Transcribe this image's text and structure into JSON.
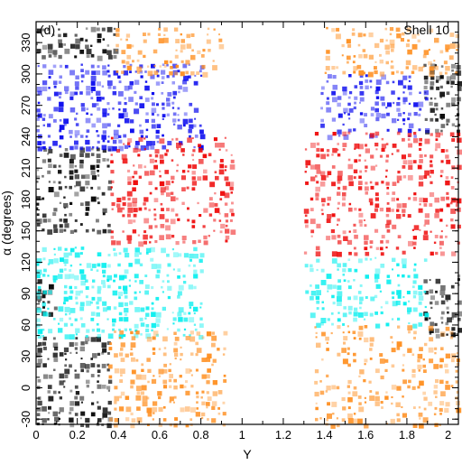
{
  "chart_data": {
    "type": "scatter",
    "panel_label": "(d)",
    "annotation": "Shell 10",
    "xlabel": "Y",
    "ylabel": "α (degrees)",
    "xlim": [
      0,
      2.05
    ],
    "ylim": [
      -35,
      350
    ],
    "x_ticks": [
      {
        "value": 0,
        "label": "0"
      },
      {
        "value": 0.2,
        "label": "0.2"
      },
      {
        "value": 0.4,
        "label": "0.4"
      },
      {
        "value": 0.6,
        "label": "0.6"
      },
      {
        "value": 0.8,
        "label": "0.8"
      },
      {
        "value": 1,
        "label": "1"
      },
      {
        "value": 1.2,
        "label": "1.2"
      },
      {
        "value": 1.4,
        "label": "1.4"
      },
      {
        "value": 1.6,
        "label": "1.6"
      },
      {
        "value": 1.8,
        "label": "1.8"
      },
      {
        "value": 2,
        "label": "2"
      }
    ],
    "y_ticks": [
      {
        "value": -30,
        "label": "-30"
      },
      {
        "value": 0,
        "label": "0"
      },
      {
        "value": 30,
        "label": "30"
      },
      {
        "value": 60,
        "label": "60"
      },
      {
        "value": 90,
        "label": "90"
      },
      {
        "value": 120,
        "label": "120"
      },
      {
        "value": 150,
        "label": "150"
      },
      {
        "value": 180,
        "label": "180"
      },
      {
        "value": 210,
        "label": "210"
      },
      {
        "value": 240,
        "label": "240"
      },
      {
        "value": 270,
        "label": "270"
      },
      {
        "value": 300,
        "label": "300"
      },
      {
        "value": 330,
        "label": "330"
      }
    ],
    "colors": {
      "black": "#000000",
      "blue": "#0000ee",
      "red": "#ee0000",
      "cyan": "#00eeee",
      "orange": "#ff8c1a"
    },
    "regions": [
      {
        "color": "black",
        "x": [
          0.0,
          0.36
        ],
        "y": [
          -35,
          50
        ],
        "density": 0.55
      },
      {
        "color": "black",
        "x": [
          0.0,
          0.36
        ],
        "y": [
          150,
          230
        ],
        "density": 0.55
      },
      {
        "color": "black",
        "x": [
          0.0,
          0.38
        ],
        "y": [
          318,
          345
        ],
        "density": 0.5
      },
      {
        "color": "black",
        "x": [
          1.88,
          2.05
        ],
        "y": [
          245,
          310
        ],
        "density": 0.7
      },
      {
        "color": "black",
        "x": [
          1.88,
          2.05
        ],
        "y": [
          50,
          110
        ],
        "density": 0.6
      },
      {
        "color": "black",
        "x": [
          0.0,
          0.1
        ],
        "y": [
          70,
          105
        ],
        "density": 0.5
      },
      {
        "color": "blue",
        "x": [
          0.0,
          0.8
        ],
        "y": [
          230,
          310
        ],
        "density": 0.55
      },
      {
        "color": "blue",
        "x": [
          1.38,
          1.88
        ],
        "y": [
          238,
          300
        ],
        "density": 0.45
      },
      {
        "color": "red",
        "x": [
          0.36,
          0.95
        ],
        "y": [
          140,
          240
        ],
        "density": 0.45
      },
      {
        "color": "red",
        "x": [
          1.3,
          2.05
        ],
        "y": [
          130,
          245
        ],
        "density": 0.45
      },
      {
        "color": "cyan",
        "x": [
          0.0,
          0.8
        ],
        "y": [
          50,
          135
        ],
        "density": 0.55
      },
      {
        "color": "cyan",
        "x": [
          1.3,
          1.88
        ],
        "y": [
          60,
          125
        ],
        "density": 0.45
      },
      {
        "color": "orange",
        "x": [
          0.35,
          0.92
        ],
        "y": [
          -35,
          55
        ],
        "density": 0.45
      },
      {
        "color": "orange",
        "x": [
          0.38,
          0.9
        ],
        "y": [
          300,
          345
        ],
        "density": 0.45
      },
      {
        "color": "orange",
        "x": [
          1.35,
          2.05
        ],
        "y": [
          -35,
          60
        ],
        "density": 0.4
      },
      {
        "color": "orange",
        "x": [
          1.4,
          2.05
        ],
        "y": [
          300,
          345
        ],
        "density": 0.4
      }
    ]
  }
}
